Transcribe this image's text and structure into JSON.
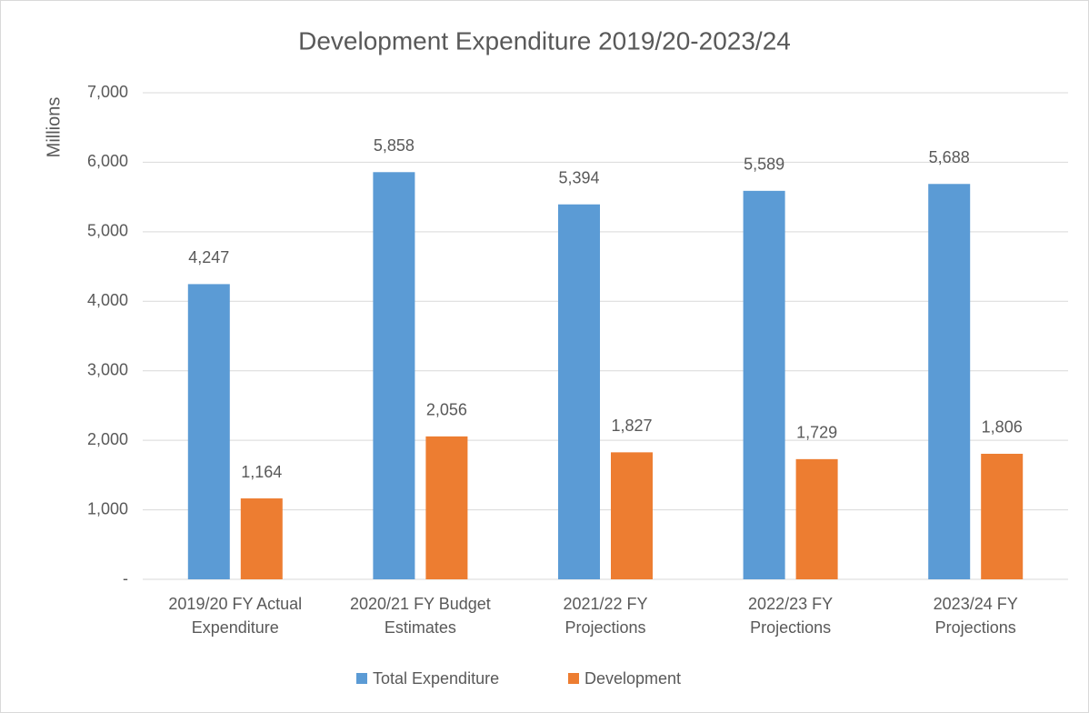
{
  "chart_data": {
    "type": "bar",
    "title": "Development Expenditure 2019/20-2023/24",
    "y_label": "Millions",
    "categories": [
      [
        "2019/20 FY Actual",
        "Expenditure"
      ],
      [
        "2020/21 FY Budget",
        "Estimates"
      ],
      [
        "2021/22 FY",
        "Projections"
      ],
      [
        "2022/23 FY",
        "Projections"
      ],
      [
        "2023/24 FY",
        "Projections"
      ]
    ],
    "series": [
      {
        "name": "Total Expenditure",
        "color": "#5b9bd5",
        "values": [
          4247,
          5858,
          5394,
          5589,
          5688
        ],
        "value_labels": [
          "4,247",
          "5,858",
          "5,394",
          "5,589",
          "5,688"
        ]
      },
      {
        "name": "Development",
        "color": "#ed7d31",
        "values": [
          1164,
          2056,
          1827,
          1729,
          1806
        ],
        "value_labels": [
          "1,164",
          "2,056",
          "1,827",
          "1,729",
          "1,806"
        ]
      }
    ],
    "ylim": [
      0,
      7000
    ],
    "yticks": [
      {
        "value": 0,
        "label": "-"
      },
      {
        "value": 1000,
        "label": "1,000"
      },
      {
        "value": 2000,
        "label": "2,000"
      },
      {
        "value": 3000,
        "label": "3,000"
      },
      {
        "value": 4000,
        "label": "4,000"
      },
      {
        "value": 5000,
        "label": "5,000"
      },
      {
        "value": 6000,
        "label": "6,000"
      },
      {
        "value": 7000,
        "label": "7,000"
      }
    ],
    "grid": true,
    "legend": "bottom"
  }
}
